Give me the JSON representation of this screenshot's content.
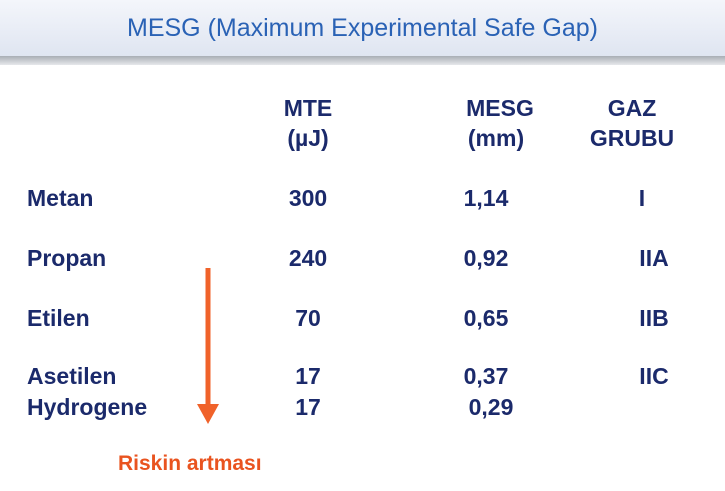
{
  "title": "MESG (Maximum Experimental Safe Gap)",
  "table": {
    "headers": [
      [
        "MTE",
        "(µJ)"
      ],
      [
        "MESG",
        "(mm)"
      ],
      [
        "GAZ",
        "GRUBU"
      ]
    ],
    "rows": [
      [
        "Metan",
        "300",
        "1,14",
        "I"
      ],
      [
        "Propan",
        "240",
        "0,92",
        "IIA"
      ],
      [
        "Etilen",
        "70",
        "0,65",
        "IIB"
      ],
      [
        "Asetilen",
        "17",
        "0,37",
        "IIC"
      ],
      [
        "Hydrogene",
        "17",
        "0,29"
      ]
    ]
  },
  "arrow_label": "Riskin artması"
}
